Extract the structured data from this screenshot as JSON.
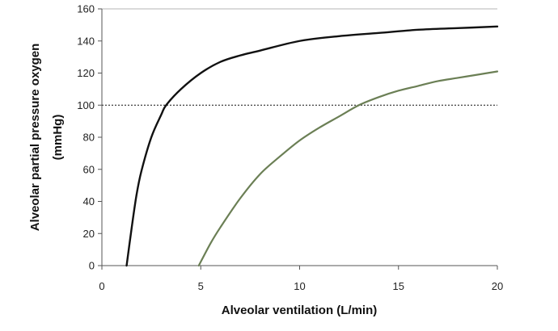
{
  "chart_data": {
    "type": "line",
    "xlabel": "Alveolar ventilation (L/min)",
    "ylabel_line1": "Alveolar partial pressure oxygen",
    "ylabel_line2": "(mmHg)",
    "xlim": [
      0,
      20
    ],
    "ylim": [
      0,
      160
    ],
    "x_ticks": [
      0,
      5,
      10,
      15,
      20
    ],
    "y_ticks": [
      0,
      20,
      40,
      60,
      80,
      100,
      120,
      140,
      160
    ],
    "grid": false,
    "reference_line": {
      "y": 100,
      "style": "dotted"
    },
    "series": [
      {
        "color": "#111111",
        "x": [
          1.25,
          1.5,
          1.75,
          2,
          2.5,
          3,
          3.25,
          4,
          5,
          6,
          7,
          8,
          10,
          12,
          14,
          16,
          18,
          20
        ],
        "y": [
          0,
          23,
          44,
          59,
          80,
          94,
          100,
          110,
          120,
          127,
          131,
          134,
          140,
          143,
          145,
          147,
          148,
          149
        ]
      },
      {
        "color": "#6b7f55",
        "x": [
          4.9,
          5.5,
          6,
          7,
          8,
          9,
          10,
          11,
          12,
          13,
          14,
          15,
          16,
          17,
          18,
          19,
          20
        ],
        "y": [
          0,
          14,
          24,
          42,
          57,
          68,
          78,
          86,
          93,
          100,
          105,
          109,
          112,
          115,
          117,
          119,
          121
        ]
      }
    ]
  }
}
